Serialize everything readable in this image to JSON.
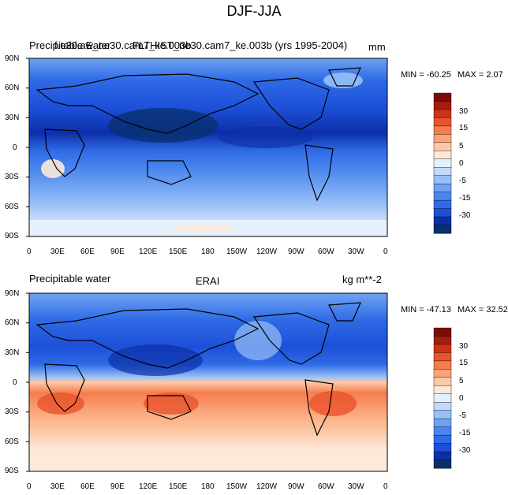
{
  "figure": {
    "title": "DJF-JJA"
  },
  "palette": [
    "#08306b",
    "#0c2fa8",
    "#1d4fd8",
    "#2f6be6",
    "#4a86ee",
    "#6fa3f2",
    "#98c0f6",
    "#c2daf9",
    "#e6f0fc",
    "#fde9da",
    "#fcc9a6",
    "#fba479",
    "#f47d4f",
    "#e8542c",
    "#cc3318",
    "#a51d0c",
    "#7a0e04"
  ],
  "colorbar_labels": [
    "30",
    "15",
    "5",
    "0",
    "-5",
    "-15",
    "-30"
  ],
  "axes": {
    "lat_ticks": [
      "90N",
      "60N",
      "30N",
      "0",
      "30S",
      "60S",
      "90S"
    ],
    "lon_ticks": [
      "0",
      "30E",
      "60E",
      "90E",
      "120E",
      "150E",
      "180",
      "150W",
      "120W",
      "90W",
      "60W",
      "30W",
      "0"
    ]
  },
  "panels": [
    {
      "left_title": "Precipitable water",
      "center_title": "f.e30.aE_ne30.cam7_ke.003b",
      "overlay_title": "FLTHIST_ne30.cam7_ke.003b (yrs 1995-2004)",
      "right_title": "mm",
      "min_label": "MIN = -60.25",
      "max_label": "MAX =   2.07"
    },
    {
      "left_title": "Precipitable water",
      "center_title": "ERAI",
      "right_title": "kg m**-2",
      "min_label": "MIN = -47.13",
      "max_label": "MAX =  32.52"
    }
  ]
}
